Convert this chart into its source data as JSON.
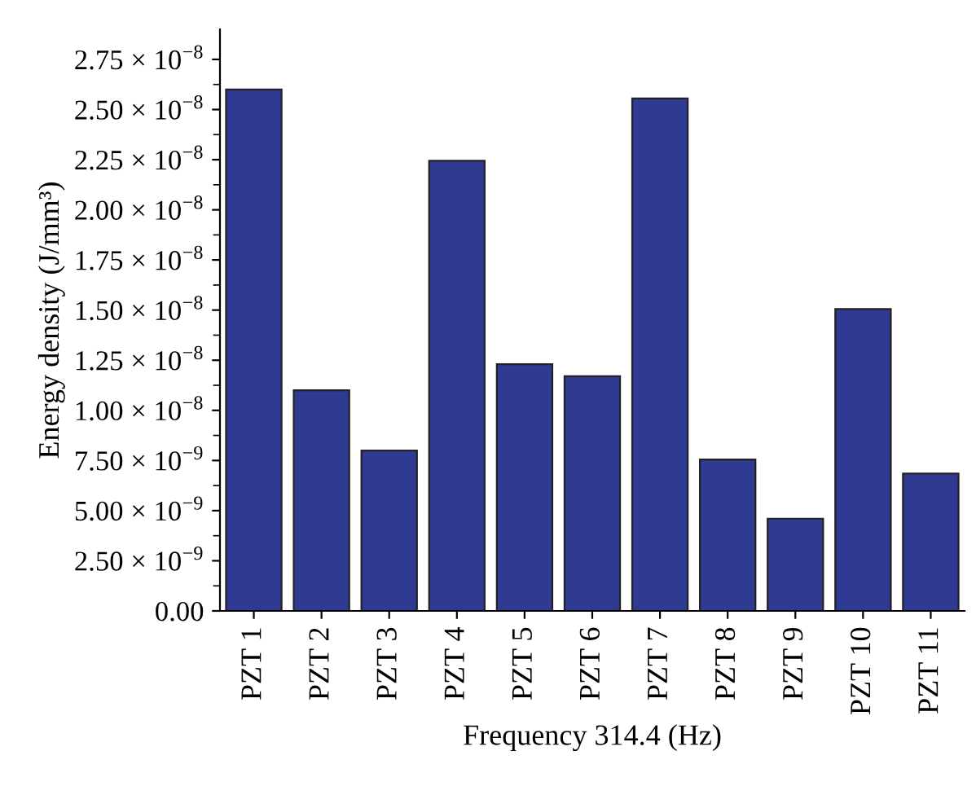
{
  "chart_data": {
    "type": "bar",
    "xlabel": "Frequency 314.4 (Hz)",
    "ylabel": "Energy density (J/mm³)",
    "categories": [
      "PZT 1",
      "PZT 2",
      "PZT 3",
      "PZT 4",
      "PZT 5",
      "PZT 6",
      "PZT 7",
      "PZT 8",
      "PZT 9",
      "PZT 10",
      "PZT 11"
    ],
    "values": [
      2.6e-08,
      1.1e-08,
      8e-09,
      2.245e-08,
      1.23e-08,
      1.17e-08,
      2.555e-08,
      7.55e-09,
      4.6e-09,
      1.505e-08,
      6.85e-09
    ],
    "color": "#2f3a92",
    "ylim": [
      0,
      2.9e-08
    ],
    "yticks": [
      {
        "value": 0,
        "label": "0.00"
      },
      {
        "value": 2.5e-09,
        "label": "2.50 × 10$^{−9}$"
      },
      {
        "value": 5e-09,
        "label": "5.00 × 10$^{−9}$"
      },
      {
        "value": 7.5e-09,
        "label": "7.50 × 10$^{−9}$"
      },
      {
        "value": 1e-08,
        "label": "1.00 × 10$^{−8}$"
      },
      {
        "value": 1.25e-08,
        "label": "1.25 × 10$^{−8}$"
      },
      {
        "value": 1.5e-08,
        "label": "1.50 × 10$^{−8}$"
      },
      {
        "value": 1.75e-08,
        "label": "1.75 × 10$^{−8}$"
      },
      {
        "value": 2e-08,
        "label": "2.00 × 10$^{−8}$"
      },
      {
        "value": 2.25e-08,
        "label": "2.25 × 10$^{−8}$"
      },
      {
        "value": 2.5e-08,
        "label": "2.50 × 10$^{−8}$"
      },
      {
        "value": 2.75e-08,
        "label": "2.75 × 10$^{−8}$"
      }
    ],
    "grid": false,
    "legend": false
  }
}
